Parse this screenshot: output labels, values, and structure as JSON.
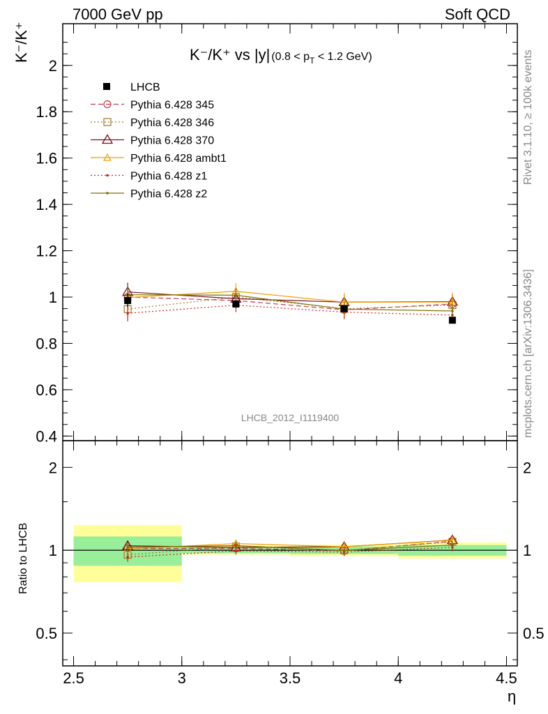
{
  "header": {
    "left": "7000 GeV pp",
    "right": "Soft QCD"
  },
  "title": {
    "main": "K⁻/K⁺ vs |y|",
    "sub": "(0.8 < p",
    "sub_sub": "T",
    "sub_end": " < 1.2 GeV)"
  },
  "side_labels": {
    "rivet": "Rivet 3.1.10, ≥ 100k events",
    "mcplots": "mcplots.cern.ch [arXiv:1306.3436]"
  },
  "analysis_id": "LHCB_2012_I1119400",
  "x_axis_label": "η",
  "y_axis_label": "K⁻/K⁺",
  "ratio_axis_label": "Ratio to LHCB",
  "chart_data": {
    "type": "line",
    "x": [
      2.75,
      3.25,
      3.75,
      4.25
    ],
    "x_bins": [
      [
        2.5,
        3.0
      ],
      [
        3.0,
        3.5
      ],
      [
        3.5,
        4.0
      ],
      [
        4.0,
        4.5
      ]
    ],
    "xlim": [
      2.45,
      4.55
    ],
    "ylim": [
      0.38,
      2.18
    ],
    "ratio_ylim": [
      0.38,
      2.5
    ],
    "ratio_log": true,
    "x_ticks": [
      2.5,
      3,
      3.5,
      4,
      4.5
    ],
    "x_tick_labels": [
      "2.5",
      "3",
      "3.5",
      "4",
      "4.5"
    ],
    "y_ticks": [
      0.4,
      0.6,
      0.8,
      1,
      1.2,
      1.4,
      1.6,
      1.8,
      2
    ],
    "y_tick_labels": [
      "0.4",
      "0.6",
      "0.8",
      "1",
      "1.2",
      "1.4",
      "1.6",
      "1.8",
      "2"
    ],
    "ratio_ticks": [
      0.5,
      1,
      2
    ],
    "ratio_tick_labels": [
      "0.5",
      "1",
      "2"
    ],
    "data": {
      "name": "LHCB",
      "y": [
        0.985,
        0.97,
        0.95,
        0.9
      ],
      "band_inner": [
        0.12,
        0.025,
        0.03,
        0.04
      ],
      "band_outer": [
        0.23,
        0.035,
        0.045,
        0.06
      ]
    },
    "series": [
      {
        "name": "Pythia 6.428 345",
        "color": "#c0394b",
        "dash": "7,4",
        "marker": "circle",
        "y": [
          1.0,
          0.985,
          0.945,
          0.97
        ],
        "err": [
          0.04,
          0.03,
          0.03,
          0.03
        ]
      },
      {
        "name": "Pythia 6.428 346",
        "color": "#a0782a",
        "dash": "2,3",
        "marker": "square",
        "y": [
          0.948,
          1.0,
          0.95,
          0.965
        ],
        "err": [
          0.04,
          0.03,
          0.03,
          0.03
        ]
      },
      {
        "name": "Pythia 6.428 370",
        "color": "#7a1020",
        "dash": "",
        "marker": "triangle",
        "y": [
          1.022,
          0.993,
          0.978,
          0.98
        ],
        "err": [
          0.04,
          0.03,
          0.03,
          0.03
        ]
      },
      {
        "name": "Pythia 6.428 ambt1",
        "color": "#f0a000",
        "dash": "",
        "marker": "triangle-small",
        "y": [
          0.998,
          1.025,
          0.978,
          0.978
        ],
        "err": [
          0.04,
          0.035,
          0.04,
          0.04
        ]
      },
      {
        "name": "Pythia 6.428 z1",
        "color": "#d42020",
        "dash": "2,3",
        "marker": "dot",
        "y": [
          0.93,
          0.965,
          0.935,
          0.922
        ],
        "err": [
          0.035,
          0.03,
          0.03,
          0.03
        ]
      },
      {
        "name": "Pythia 6.428 z2",
        "color": "#7a7000",
        "dash": "",
        "marker": "dot",
        "y": [
          1.01,
          1.008,
          0.948,
          0.94
        ],
        "err": [
          0.04,
          0.03,
          0.03,
          0.03
        ]
      }
    ]
  }
}
